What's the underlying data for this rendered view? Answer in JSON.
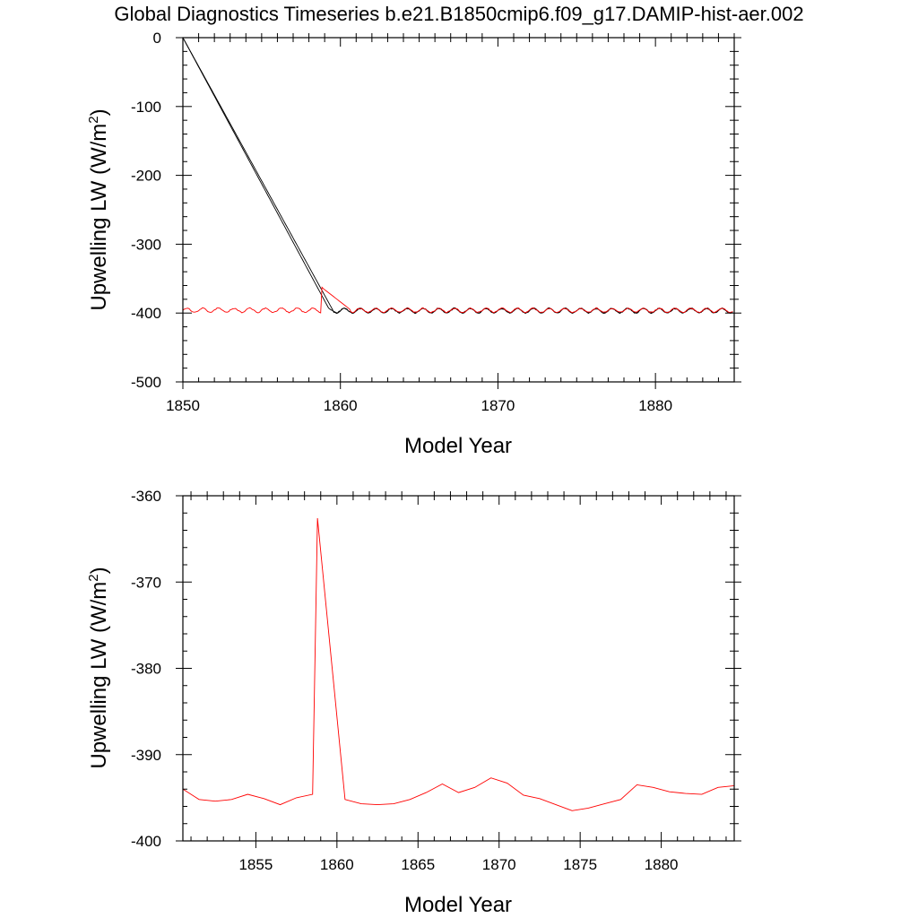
{
  "page": {
    "title": "Global Diagnostics Timeseries b.e21.B1850cmip6.f09_g17.DAMIP-hist-aer.002"
  },
  "chart_data": [
    {
      "type": "line",
      "xlabel": "Model Year",
      "ylabel": "Upwelling LW (W/m",
      "ylabel_sup": "2",
      "ylabel_close": ")",
      "xlim": [
        1850,
        1885
      ],
      "ylim": [
        -500,
        0
      ],
      "x_ticks": [
        1850,
        1860,
        1870,
        1880
      ],
      "x_tick_labels": [
        "1850",
        "1860",
        "1870",
        "1880"
      ],
      "y_ticks": [
        0,
        -100,
        -200,
        -300,
        -400,
        -500
      ],
      "y_tick_labels": [
        "0",
        "-100",
        "-200",
        "-300",
        "-400",
        "-500"
      ],
      "grid": false,
      "series": [
        {
          "color": "#000000",
          "style": "monthly, black",
          "start_year": 1850.0,
          "step": 0.0833,
          "n": 420,
          "mean": -395.0,
          "seasonal_amplitude": 3.5,
          "spinup_end_year": 1859.5,
          "spinup_start_value": 0
        },
        {
          "color": "#000000",
          "style": "monthly, black (second member)",
          "start_year": 1850.0,
          "step": 0.0833,
          "n": 420,
          "mean": -395.0,
          "seasonal_amplitude": 3.0,
          "spinup_end_year": 1859.3,
          "spinup_start_value": 0
        },
        {
          "color": "#ff0000",
          "style": "monthly, red",
          "start_year": 1850.0,
          "step": 0.0833,
          "n": 420,
          "mean": -394.5,
          "seasonal_amplitude": 3.0,
          "spike_year": 1858.8,
          "spike_value": -362.5
        }
      ]
    },
    {
      "type": "line",
      "xlabel": "Model Year",
      "ylabel": "Upwelling LW (W/m",
      "ylabel_sup": "2",
      "ylabel_close": ")",
      "xlim": [
        1850.5,
        1884.5
      ],
      "ylim": [
        -400,
        -360
      ],
      "x_ticks": [
        1855,
        1860,
        1865,
        1870,
        1875,
        1880
      ],
      "x_tick_labels": [
        "1855",
        "1860",
        "1865",
        "1870",
        "1875",
        "1880"
      ],
      "y_ticks": [
        -360,
        -370,
        -380,
        -390,
        -400
      ],
      "y_tick_labels": [
        "-360",
        "-370",
        "-380",
        "-390",
        "-400"
      ],
      "grid": false,
      "series": [
        {
          "color": "#ff0000",
          "x": [
            1850.5,
            1851.5,
            1852.5,
            1853.5,
            1854.5,
            1855.5,
            1856.5,
            1857.5,
            1858.5,
            1858.8,
            1860.5,
            1861.5,
            1862.5,
            1863.5,
            1864.5,
            1865.5,
            1866.5,
            1867.5,
            1868.5,
            1869.5,
            1870.5,
            1871.5,
            1872.5,
            1873.5,
            1874.5,
            1875.5,
            1876.5,
            1877.5,
            1878.5,
            1879.5,
            1880.5,
            1881.5,
            1882.5,
            1883.5,
            1884.5
          ],
          "y": [
            -394.0,
            -395.2,
            -395.4,
            -395.2,
            -394.6,
            -395.1,
            -395.8,
            -395.0,
            -394.6,
            -362.6,
            -395.2,
            -395.7,
            -395.8,
            -395.7,
            -395.2,
            -394.4,
            -393.4,
            -394.4,
            -393.8,
            -392.7,
            -393.3,
            -394.7,
            -395.1,
            -395.8,
            -396.5,
            -396.2,
            -395.7,
            -395.2,
            -393.5,
            -393.8,
            -394.3,
            -394.5,
            -394.6,
            -393.8,
            -393.6
          ]
        }
      ]
    }
  ]
}
